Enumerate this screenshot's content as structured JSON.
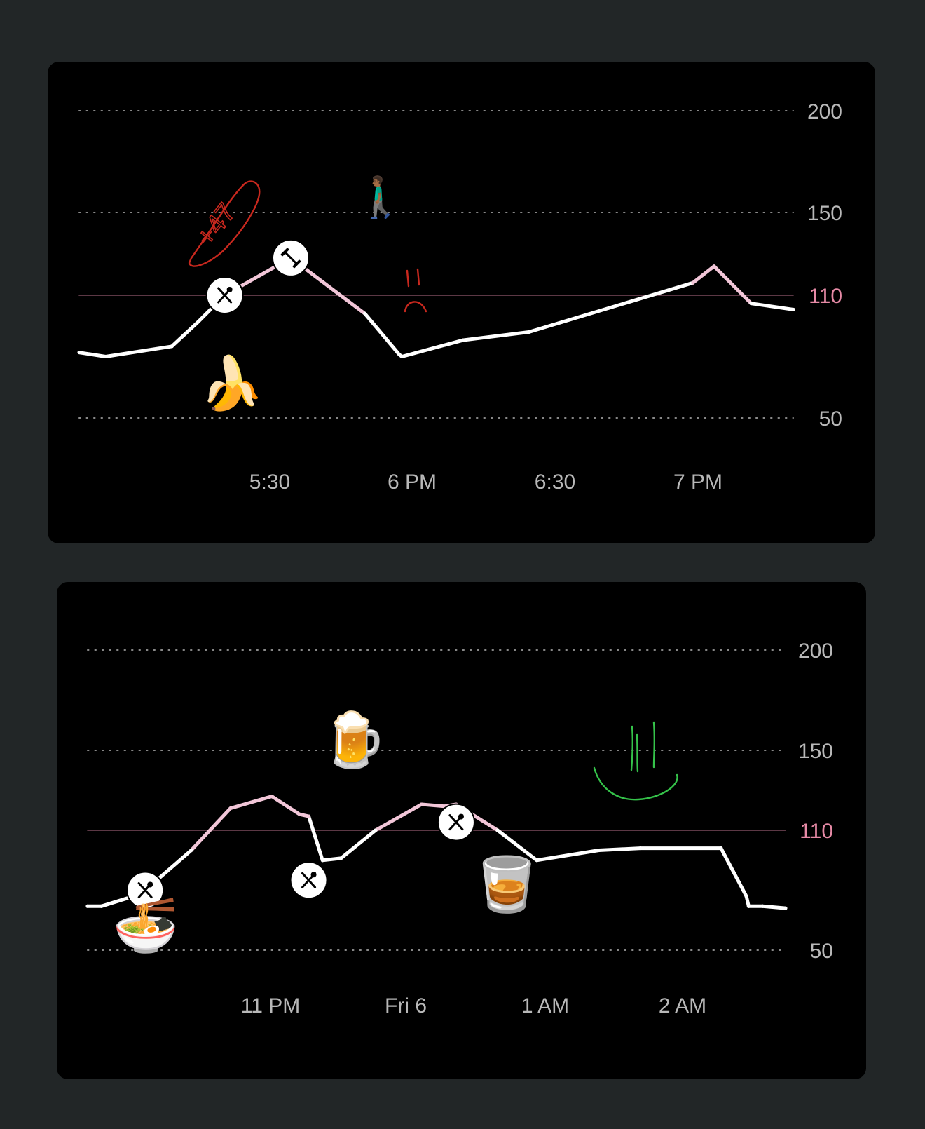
{
  "colors": {
    "background": "#222627",
    "panel": "#000000",
    "grid": "#8a8a8a",
    "target_line": "#7a4a5c",
    "target_label": "#e68aa6",
    "axis_label": "#b8b8b8",
    "line_normal": "#ffffff",
    "line_elevated": "#f2c6d8",
    "annotation_red": "#c8281e",
    "annotation_green": "#35c24a"
  },
  "chart_data": [
    {
      "type": "line",
      "y_ticks": [
        "200",
        "150",
        "110",
        "50"
      ],
      "target": 110,
      "x_tick_labels": [
        "5:30",
        "6 PM",
        "6:30",
        "7 PM"
      ],
      "x": [
        0,
        10,
        35,
        45,
        55,
        80,
        108,
        121,
        122,
        145,
        170,
        232,
        240,
        254,
        270
      ],
      "y": [
        82,
        80,
        85,
        97,
        110,
        128,
        101,
        81,
        80,
        88,
        92,
        116,
        124,
        106,
        103
      ],
      "markers": [
        {
          "x": 55,
          "y": 110,
          "kind": "meal",
          "icon": "fork-knife-icon"
        },
        {
          "x": 80,
          "y": 128,
          "kind": "exercise",
          "icon": "dumbbell-icon"
        }
      ],
      "annotations": [
        {
          "text": "+47",
          "color": "#c8281e"
        },
        {
          "text": "sad face",
          "color": "#c8281e"
        }
      ],
      "emojis": [
        {
          "icon": "banana-icon",
          "glyph": "🍌"
        },
        {
          "icon": "person-walking-icon",
          "glyph": "🚶🏾‍♂️"
        }
      ]
    },
    {
      "type": "line",
      "y_ticks": [
        "200",
        "150",
        "110",
        "50"
      ],
      "target": 110,
      "x_tick_labels": [
        "11 PM",
        "Fri  6",
        "1 AM",
        "2 AM"
      ],
      "x": [
        0,
        6,
        20,
        25,
        45,
        62,
        80,
        92,
        96,
        102,
        110,
        125,
        145,
        155,
        160,
        178,
        195,
        222,
        240,
        275,
        286,
        287,
        293,
        303
      ],
      "y": [
        72,
        72,
        77,
        80,
        100,
        121,
        127,
        118,
        117,
        95,
        96,
        110,
        123,
        122,
        123,
        110,
        95,
        100,
        101,
        101,
        77,
        72,
        72,
        71
      ],
      "markers": [
        {
          "x": 25,
          "y": 80,
          "kind": "meal",
          "icon": "fork-knife-icon"
        },
        {
          "x": 96,
          "y": 85,
          "kind": "meal",
          "icon": "fork-knife-icon"
        },
        {
          "x": 160,
          "y": 114,
          "kind": "meal",
          "icon": "fork-knife-icon"
        }
      ],
      "annotations": [
        {
          "text": "smiley face",
          "color": "#35c24a"
        }
      ],
      "emojis": [
        {
          "icon": "noodle-bowl-icon",
          "glyph": "🍜"
        },
        {
          "icon": "beer-mug-icon",
          "glyph": "🍺"
        },
        {
          "icon": "whiskey-glass-icon",
          "glyph": "🥃"
        }
      ]
    }
  ]
}
